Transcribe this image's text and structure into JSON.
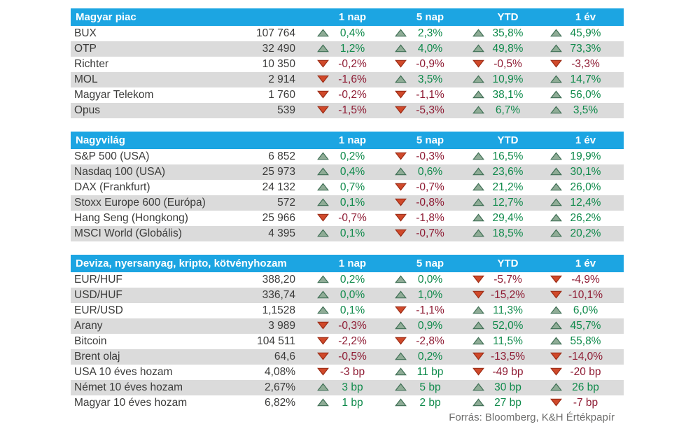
{
  "colors": {
    "header_bg": "#1CA5E2",
    "header_text": "#FFFFFF",
    "row_alt_bg": "#DBDBDB",
    "row_bg": "#FFFFFF",
    "text": "#3B3B3A",
    "positive_text": "#0F8A4B",
    "negative_text": "#8E1B33",
    "up_triangle_fill": "#8FAC96",
    "up_triangle_border": "#3F6F55",
    "down_triangle_fill": "#D0492A",
    "down_triangle_border": "#9C2C16",
    "footer_text": "#6E6E6D"
  },
  "chart_data": {
    "type": "table",
    "columns": [
      "1 nap",
      "5 nap",
      "YTD",
      "1 év"
    ],
    "source_note": "Forrás: Bloomberg, K&H Értékpapír",
    "tables": [
      {
        "title": "Magyar piac",
        "rows": [
          {
            "name": "BUX",
            "value": "107 764",
            "changes": [
              {
                "dir": "up",
                "text": "0,4%"
              },
              {
                "dir": "up",
                "text": "2,3%"
              },
              {
                "dir": "up",
                "text": "35,8%"
              },
              {
                "dir": "up",
                "text": "45,9%"
              }
            ]
          },
          {
            "name": "OTP",
            "value": "32 490",
            "changes": [
              {
                "dir": "up",
                "text": "1,2%"
              },
              {
                "dir": "up",
                "text": "4,0%"
              },
              {
                "dir": "up",
                "text": "49,8%"
              },
              {
                "dir": "up",
                "text": "73,3%"
              }
            ]
          },
          {
            "name": "Richter",
            "value": "10 350",
            "changes": [
              {
                "dir": "down",
                "text": "-0,2%"
              },
              {
                "dir": "down",
                "text": "-0,9%"
              },
              {
                "dir": "down",
                "text": "-0,5%"
              },
              {
                "dir": "down",
                "text": "-3,3%"
              }
            ]
          },
          {
            "name": "MOL",
            "value": "2 914",
            "changes": [
              {
                "dir": "down",
                "text": "-1,6%"
              },
              {
                "dir": "up",
                "text": "3,5%"
              },
              {
                "dir": "up",
                "text": "10,9%"
              },
              {
                "dir": "up",
                "text": "14,7%"
              }
            ]
          },
          {
            "name": "Magyar Telekom",
            "value": "1 760",
            "changes": [
              {
                "dir": "down",
                "text": "-0,2%"
              },
              {
                "dir": "down",
                "text": "-1,1%"
              },
              {
                "dir": "up",
                "text": "38,1%"
              },
              {
                "dir": "up",
                "text": "56,0%"
              }
            ]
          },
          {
            "name": "Opus",
            "value": "539",
            "changes": [
              {
                "dir": "down",
                "text": "-1,5%"
              },
              {
                "dir": "down",
                "text": "-5,3%"
              },
              {
                "dir": "up",
                "text": "6,7%"
              },
              {
                "dir": "up",
                "text": "3,5%"
              }
            ]
          }
        ]
      },
      {
        "title": "Nagyvilág",
        "rows": [
          {
            "name": "S&P 500 (USA)",
            "value": "6 852",
            "changes": [
              {
                "dir": "up",
                "text": "0,2%"
              },
              {
                "dir": "down",
                "text": "-0,3%"
              },
              {
                "dir": "up",
                "text": "16,5%"
              },
              {
                "dir": "up",
                "text": "19,9%"
              }
            ]
          },
          {
            "name": "Nasdaq 100 (USA)",
            "value": "25 973",
            "changes": [
              {
                "dir": "up",
                "text": "0,4%"
              },
              {
                "dir": "up",
                "text": "0,6%"
              },
              {
                "dir": "up",
                "text": "23,6%"
              },
              {
                "dir": "up",
                "text": "30,1%"
              }
            ]
          },
          {
            "name": "DAX (Frankfurt)",
            "value": "24 132",
            "changes": [
              {
                "dir": "up",
                "text": "0,7%"
              },
              {
                "dir": "down",
                "text": "-0,7%"
              },
              {
                "dir": "up",
                "text": "21,2%"
              },
              {
                "dir": "up",
                "text": "26,0%"
              }
            ]
          },
          {
            "name": "Stoxx Europe 600 (Európa)",
            "value": "572",
            "changes": [
              {
                "dir": "up",
                "text": "0,1%"
              },
              {
                "dir": "down",
                "text": "-0,8%"
              },
              {
                "dir": "up",
                "text": "12,7%"
              },
              {
                "dir": "up",
                "text": "12,4%"
              }
            ]
          },
          {
            "name": "Hang Seng (Hongkong)",
            "value": "25 966",
            "changes": [
              {
                "dir": "down",
                "text": "-0,7%"
              },
              {
                "dir": "down",
                "text": "-1,8%"
              },
              {
                "dir": "up",
                "text": "29,4%"
              },
              {
                "dir": "up",
                "text": "26,2%"
              }
            ]
          },
          {
            "name": "MSCI World (Globális)",
            "value": "4 395",
            "changes": [
              {
                "dir": "up",
                "text": "0,1%"
              },
              {
                "dir": "down",
                "text": "-0,7%"
              },
              {
                "dir": "up",
                "text": "18,5%"
              },
              {
                "dir": "up",
                "text": "20,2%"
              }
            ]
          }
        ]
      },
      {
        "title": "Deviza, nyersanyag, kripto, kötvényhozam",
        "rows": [
          {
            "name": "EUR/HUF",
            "value": "388,20",
            "changes": [
              {
                "dir": "up",
                "text": "0,2%"
              },
              {
                "dir": "up",
                "text": "0,0%"
              },
              {
                "dir": "down",
                "text": "-5,7%"
              },
              {
                "dir": "down",
                "text": "-4,9%"
              }
            ]
          },
          {
            "name": "USD/HUF",
            "value": "336,74",
            "changes": [
              {
                "dir": "up",
                "text": "0,0%"
              },
              {
                "dir": "up",
                "text": "1,0%"
              },
              {
                "dir": "down",
                "text": "-15,2%"
              },
              {
                "dir": "down",
                "text": "-10,1%"
              }
            ]
          },
          {
            "name": "EUR/USD",
            "value": "1,1528",
            "changes": [
              {
                "dir": "up",
                "text": "0,1%"
              },
              {
                "dir": "down",
                "text": "-1,1%"
              },
              {
                "dir": "up",
                "text": "11,3%"
              },
              {
                "dir": "up",
                "text": "6,0%"
              }
            ]
          },
          {
            "name": "Arany",
            "value": "3 989",
            "changes": [
              {
                "dir": "down",
                "text": "-0,3%"
              },
              {
                "dir": "up",
                "text": "0,9%"
              },
              {
                "dir": "up",
                "text": "52,0%"
              },
              {
                "dir": "up",
                "text": "45,7%"
              }
            ]
          },
          {
            "name": "Bitcoin",
            "value": "104 511",
            "changes": [
              {
                "dir": "down",
                "text": "-2,2%"
              },
              {
                "dir": "down",
                "text": "-2,8%"
              },
              {
                "dir": "up",
                "text": "11,5%"
              },
              {
                "dir": "up",
                "text": "55,8%"
              }
            ]
          },
          {
            "name": "Brent olaj",
            "value": "64,6",
            "changes": [
              {
                "dir": "down",
                "text": "-0,5%"
              },
              {
                "dir": "up",
                "text": "0,2%"
              },
              {
                "dir": "down",
                "text": "-13,5%"
              },
              {
                "dir": "down",
                "text": "-14,0%"
              }
            ]
          },
          {
            "name": "USA 10 éves hozam",
            "value": "4,08%",
            "changes": [
              {
                "dir": "down",
                "text": "-3 bp"
              },
              {
                "dir": "up",
                "text": "11 bp"
              },
              {
                "dir": "down",
                "text": "-49 bp"
              },
              {
                "dir": "down",
                "text": "-20 bp"
              }
            ]
          },
          {
            "name": "Német 10 éves hozam",
            "value": "2,67%",
            "changes": [
              {
                "dir": "up",
                "text": "3 bp"
              },
              {
                "dir": "up",
                "text": "5 bp"
              },
              {
                "dir": "up",
                "text": "30 bp"
              },
              {
                "dir": "up",
                "text": "26 bp"
              }
            ]
          },
          {
            "name": "Magyar 10 éves hozam",
            "value": "6,82%",
            "changes": [
              {
                "dir": "up",
                "text": "1 bp"
              },
              {
                "dir": "up",
                "text": "2 bp"
              },
              {
                "dir": "up",
                "text": "27 bp"
              },
              {
                "dir": "down",
                "text": "-7 bp"
              }
            ]
          }
        ]
      }
    ]
  }
}
